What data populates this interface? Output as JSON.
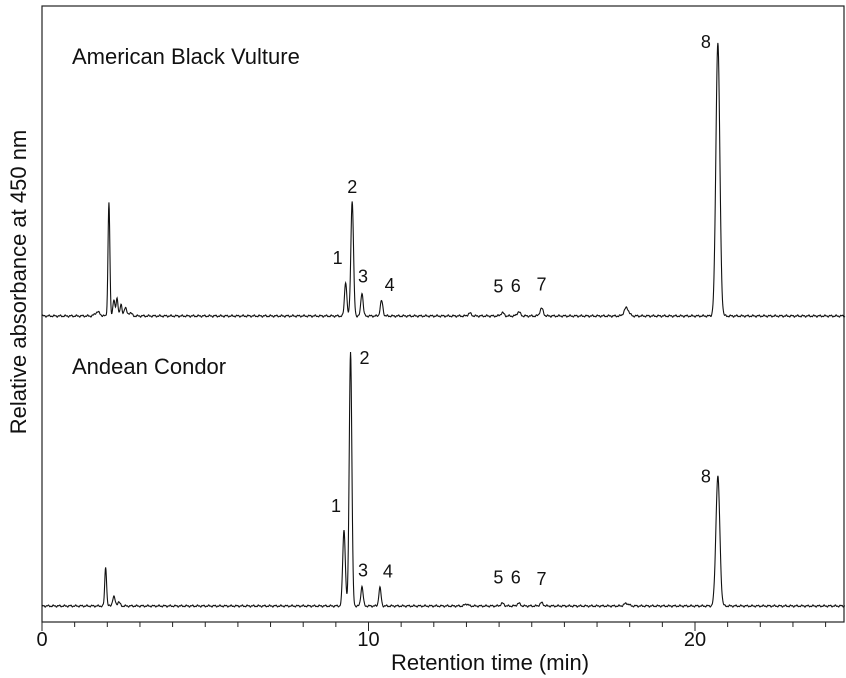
{
  "chart_data": {
    "type": "line",
    "xlabel": "Retention time (min)",
    "ylabel": "Relative absorbance at 450 nm",
    "xlim": [
      0,
      24.6
    ],
    "xticks": [
      0,
      10,
      20
    ],
    "grid": false,
    "series": [
      {
        "name": "American  Black Vulture",
        "position": "top",
        "peaks": [
          {
            "t": 1.7,
            "h": 0.015,
            "w": 0.07
          },
          {
            "t": 2.05,
            "h": 0.415,
            "w": 0.028
          },
          {
            "t": 2.2,
            "h": 0.06,
            "w": 0.03
          },
          {
            "t": 2.3,
            "h": 0.065,
            "w": 0.03
          },
          {
            "t": 2.42,
            "h": 0.04,
            "w": 0.03
          },
          {
            "t": 2.55,
            "h": 0.03,
            "w": 0.04
          },
          {
            "t": 2.7,
            "h": 0.012,
            "w": 0.05
          },
          {
            "t": 9.3,
            "h": 0.125,
            "w": 0.035
          },
          {
            "t": 9.5,
            "h": 0.42,
            "w": 0.04
          },
          {
            "t": 9.8,
            "h": 0.085,
            "w": 0.035
          },
          {
            "t": 10.4,
            "h": 0.055,
            "w": 0.04
          },
          {
            "t": 13.1,
            "h": 0.01,
            "w": 0.05
          },
          {
            "t": 14.1,
            "h": 0.012,
            "w": 0.05
          },
          {
            "t": 14.6,
            "h": 0.015,
            "w": 0.05
          },
          {
            "t": 15.3,
            "h": 0.028,
            "w": 0.05
          },
          {
            "t": 17.9,
            "h": 0.03,
            "w": 0.07
          },
          {
            "t": 20.7,
            "h": 1.0,
            "w": 0.06
          }
        ],
        "peak_labels": [
          {
            "text": "1",
            "t": 9.3,
            "h": 0.125
          },
          {
            "text": "2",
            "t": 9.5,
            "h": 0.42
          },
          {
            "text": "3",
            "t": 9.8,
            "h": 0.085
          },
          {
            "text": "4",
            "t": 10.4,
            "h": 0.055
          },
          {
            "text": "5",
            "t": 14.1,
            "h": 0.012
          },
          {
            "text": "6",
            "t": 14.6,
            "h": 0.015
          },
          {
            "text": "7",
            "t": 15.3,
            "h": 0.028
          },
          {
            "text": "8",
            "t": 20.7,
            "h": 1.0
          }
        ]
      },
      {
        "name": "Andean  Condor",
        "position": "bottom",
        "peaks": [
          {
            "t": 1.95,
            "h": 0.15,
            "w": 0.028
          },
          {
            "t": 2.2,
            "h": 0.035,
            "w": 0.04
          },
          {
            "t": 2.35,
            "h": 0.015,
            "w": 0.04
          },
          {
            "t": 9.25,
            "h": 0.29,
            "w": 0.04
          },
          {
            "t": 9.45,
            "h": 0.97,
            "w": 0.04
          },
          {
            "t": 9.8,
            "h": 0.075,
            "w": 0.035
          },
          {
            "t": 10.35,
            "h": 0.07,
            "w": 0.035
          },
          {
            "t": 13.0,
            "h": 0.008,
            "w": 0.05
          },
          {
            "t": 14.1,
            "h": 0.01,
            "w": 0.05
          },
          {
            "t": 14.6,
            "h": 0.01,
            "w": 0.05
          },
          {
            "t": 15.3,
            "h": 0.012,
            "w": 0.05
          },
          {
            "t": 17.9,
            "h": 0.01,
            "w": 0.07
          },
          {
            "t": 20.7,
            "h": 0.495,
            "w": 0.06
          }
        ],
        "peak_labels": [
          {
            "text": "1",
            "t": 9.25,
            "h": 0.29
          },
          {
            "text": "2",
            "t": 9.45,
            "h": 0.97
          },
          {
            "text": "3",
            "t": 9.8,
            "h": 0.075
          },
          {
            "text": "4",
            "t": 10.35,
            "h": 0.07
          },
          {
            "text": "5",
            "t": 14.1,
            "h": 0.01
          },
          {
            "text": "6",
            "t": 14.6,
            "h": 0.01
          },
          {
            "text": "7",
            "t": 15.3,
            "h": 0.012
          },
          {
            "text": "8",
            "t": 20.7,
            "h": 0.495
          }
        ]
      }
    ]
  }
}
